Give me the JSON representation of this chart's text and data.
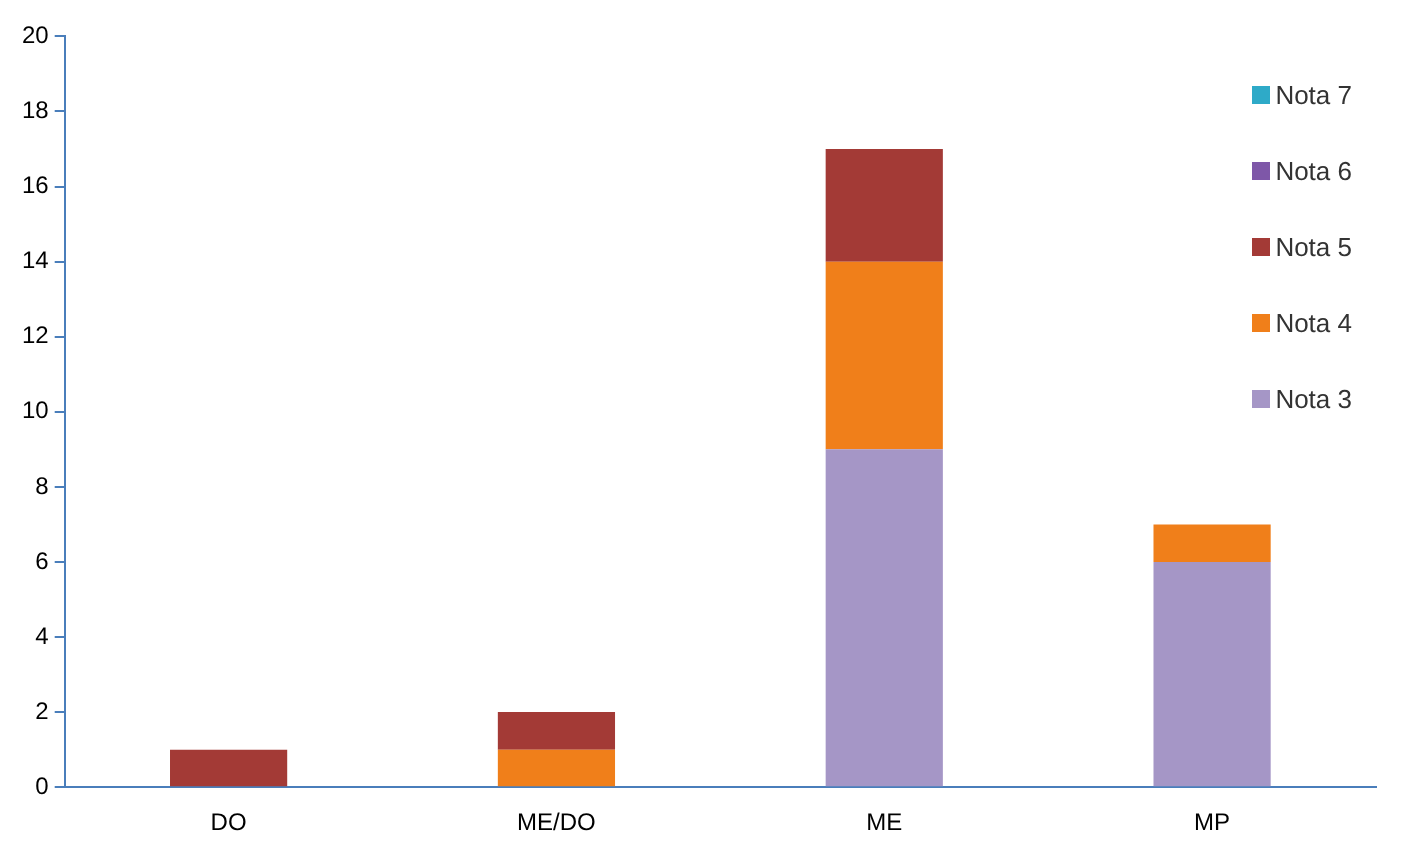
{
  "chart_data": {
    "type": "bar",
    "stacked": true,
    "categories": [
      "DO",
      "ME/DO",
      "ME",
      "MP"
    ],
    "series": [
      {
        "name": "Nota 3",
        "color": "#a596c6",
        "values": [
          0,
          0,
          9,
          6
        ]
      },
      {
        "name": "Nota 4",
        "color": "#f07f1a",
        "values": [
          0,
          1,
          5,
          1
        ]
      },
      {
        "name": "Nota 5",
        "color": "#a33a36",
        "values": [
          1,
          1,
          3,
          0
        ]
      },
      {
        "name": "Nota 6",
        "color": "#7e57a8",
        "values": [
          0,
          0,
          0,
          0
        ]
      },
      {
        "name": "Nota 7",
        "color": "#2eaac8",
        "values": [
          0,
          0,
          0,
          0
        ]
      }
    ],
    "ylim": [
      0,
      20
    ],
    "yticks": [
      0,
      2,
      4,
      6,
      8,
      10,
      12,
      14,
      16,
      18,
      20
    ],
    "grid": false,
    "legend": "top right"
  }
}
